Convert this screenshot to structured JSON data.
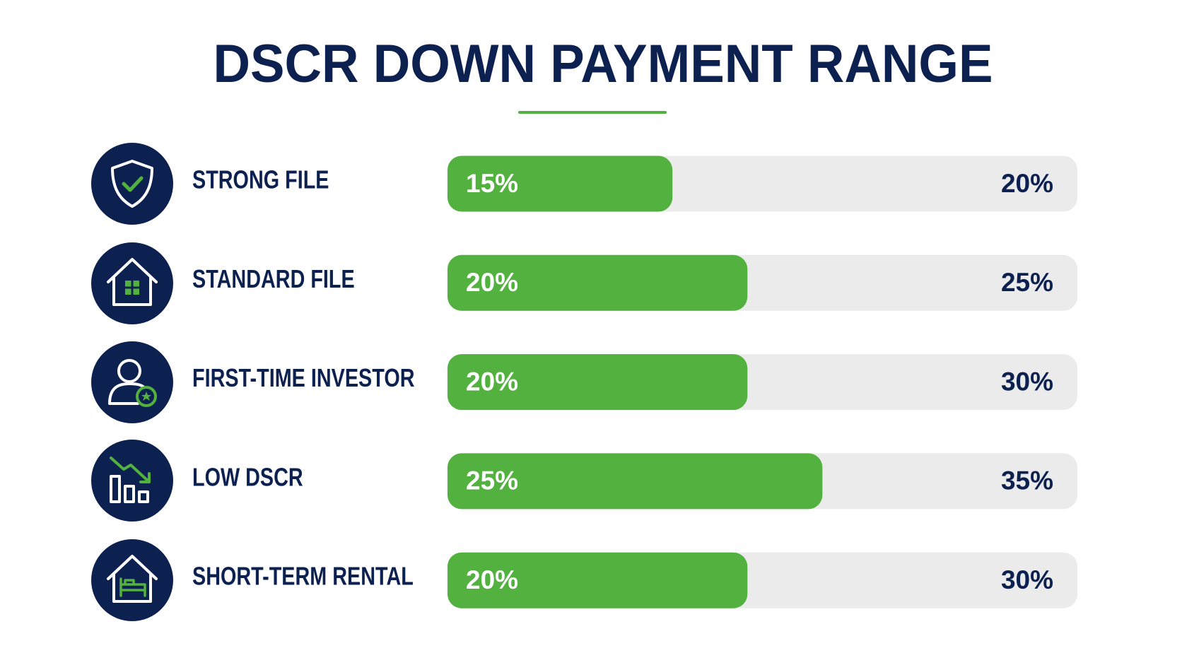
{
  "chart_data": {
    "type": "range_bar",
    "title": "DSCR DOWN PAYMENT RANGE",
    "categories": [
      "STRONG FILE",
      "STANDARD FILE",
      "FIRST-TIME INVESTOR",
      "LOW DSCR",
      "SHORT-TERM RENTAL"
    ],
    "values": [
      15,
      20,
      20,
      25,
      20
    ],
    "value_labels": [
      "15%",
      "20%",
      "20%",
      "25%",
      "20%"
    ],
    "max_values": [
      20,
      25,
      30,
      35,
      30
    ],
    "max_value_labels": [
      "20%",
      "25%",
      "30%",
      "35%",
      "30%"
    ],
    "color": "#52b13f",
    "track_color": "#ebebeb",
    "text_color": "#0d2150",
    "xlim": [
      0,
      42
    ]
  }
}
